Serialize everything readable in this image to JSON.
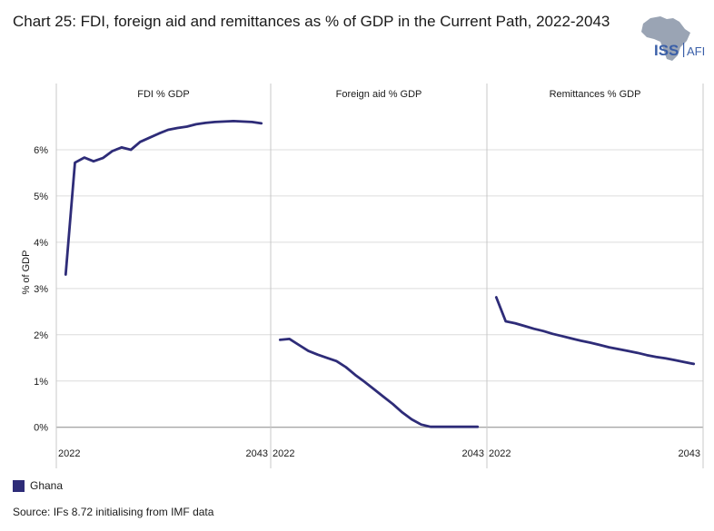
{
  "title": "Chart 25: FDI, foreign aid and remittances as % of GDP in the Current Path, 2022-2043",
  "logo": {
    "text_main": "ISS",
    "text_sub": "AFI",
    "icon": "africa-map-icon"
  },
  "colors": {
    "series": "#2e2c78",
    "logo_grey": "#9aa4b4",
    "logo_blue": "#3a5fa8",
    "grid": "#dcdcdc",
    "panel_border": "#c8c8c8",
    "zero_line": "#888888"
  },
  "legend": {
    "label": "Ghana"
  },
  "source": "Source: IFs 8.72 initialising from IMF data",
  "chart_data": {
    "type": "line",
    "ylabel": "% of GDP",
    "ylim": [
      -0.3,
      7.0
    ],
    "yticks": [
      0,
      1,
      2,
      3,
      4,
      5,
      6
    ],
    "ytick_labels": [
      "0%",
      "1%",
      "2%",
      "3%",
      "4%",
      "5%",
      "6%"
    ],
    "xlim": [
      2021,
      2044
    ],
    "xtick_labels": [
      "2022",
      "2043"
    ],
    "grid": true,
    "legend_position": "bottom-left",
    "panels": [
      {
        "title": "FDI % GDP",
        "series": [
          {
            "name": "Ghana",
            "x": [
              2022,
              2023,
              2024,
              2025,
              2026,
              2027,
              2028,
              2029,
              2030,
              2031,
              2032,
              2033,
              2034,
              2035,
              2036,
              2037,
              2038,
              2039,
              2040,
              2041,
              2042,
              2043
            ],
            "values": [
              3.3,
              5.72,
              5.83,
              5.75,
              5.82,
              5.97,
              6.05,
              6.0,
              6.17,
              6.26,
              6.35,
              6.43,
              6.47,
              6.5,
              6.55,
              6.58,
              6.6,
              6.61,
              6.62,
              6.61,
              6.6,
              6.57
            ]
          }
        ]
      },
      {
        "title": "Foreign aid % GDP",
        "series": [
          {
            "name": "Ghana",
            "x": [
              2022,
              2023,
              2024,
              2025,
              2026,
              2027,
              2028,
              2029,
              2030,
              2031,
              2032,
              2033,
              2034,
              2035,
              2036,
              2037,
              2038,
              2039,
              2040,
              2041,
              2042,
              2043
            ],
            "values": [
              1.89,
              1.91,
              1.78,
              1.65,
              1.57,
              1.5,
              1.43,
              1.3,
              1.13,
              0.98,
              0.82,
              0.66,
              0.5,
              0.32,
              0.17,
              0.06,
              0.01,
              0.01,
              0.01,
              0.01,
              0.01,
              0.01
            ]
          }
        ]
      },
      {
        "title": "Remittances % GDP",
        "series": [
          {
            "name": "Ghana",
            "x": [
              2022,
              2023,
              2024,
              2025,
              2026,
              2027,
              2028,
              2029,
              2030,
              2031,
              2032,
              2033,
              2034,
              2035,
              2036,
              2037,
              2038,
              2039,
              2040,
              2041,
              2042,
              2043
            ],
            "values": [
              2.81,
              2.29,
              2.25,
              2.19,
              2.13,
              2.08,
              2.02,
              1.97,
              1.92,
              1.87,
              1.83,
              1.78,
              1.73,
              1.69,
              1.65,
              1.61,
              1.56,
              1.52,
              1.49,
              1.45,
              1.41,
              1.37
            ]
          }
        ]
      }
    ]
  }
}
